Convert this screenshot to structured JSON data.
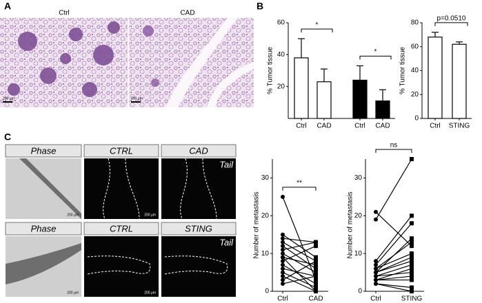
{
  "panel_labels": [
    "A",
    "B",
    "C"
  ],
  "histology": {
    "labels": [
      "Ctrl",
      "CAD"
    ],
    "scale_bars": [
      "200 µm",
      "200 µm"
    ]
  },
  "zebrafish": {
    "rows": [
      {
        "headers": [
          "Phase",
          "CTRL",
          "CAD"
        ],
        "tail": "Tail",
        "scale_bars": [
          "200 µm",
          "200 µm"
        ]
      },
      {
        "headers": [
          "Phase",
          "CTRL",
          "STING"
        ],
        "tail": "Tail",
        "scale_bars": [
          "200 µm",
          "200 µm"
        ]
      }
    ]
  },
  "chart_data": [
    {
      "type": "bar",
      "y_label": "% Tumor tissue",
      "categories": [
        "Ctrl",
        "CAD",
        "Ctrl",
        "CAD"
      ],
      "values": [
        38,
        23,
        24,
        11
      ],
      "errors": [
        12,
        8,
        9,
        7
      ],
      "colors": [
        "#ffffff",
        "#ffffff",
        "#000000",
        "#000000"
      ],
      "ylim": [
        0,
        60
      ],
      "yticks": [
        20,
        40,
        60
      ],
      "annotations": [
        "*",
        "*"
      ]
    },
    {
      "type": "bar",
      "y_label": "% Tumor tissue",
      "categories": [
        "Ctrl",
        "STING"
      ],
      "values": [
        68,
        62
      ],
      "errors": [
        4,
        2
      ],
      "colors": [
        "#ffffff",
        "#ffffff"
      ],
      "ylim": [
        0,
        80
      ],
      "yticks": [
        0,
        20,
        40,
        60,
        80
      ],
      "annotations": [
        "p=0.0510"
      ]
    },
    {
      "type": "paired",
      "y_label": "Number of metastasis",
      "categories": [
        "Ctrl",
        "CAD"
      ],
      "values": [
        [
          25,
          3
        ],
        [
          15,
          9
        ],
        [
          14,
          13
        ],
        [
          13,
          8
        ],
        [
          12,
          6
        ],
        [
          11,
          13
        ],
        [
          10,
          5
        ],
        [
          9,
          7
        ],
        [
          8,
          12
        ],
        [
          7,
          2
        ],
        [
          6,
          4
        ],
        [
          5,
          1
        ],
        [
          4,
          0
        ],
        [
          3,
          8
        ],
        [
          2,
          4
        ],
        [
          9,
          0
        ]
      ],
      "ylim": [
        0,
        35
      ],
      "yticks": [
        0,
        10,
        20,
        30
      ],
      "annotations": [
        "**"
      ]
    },
    {
      "type": "paired",
      "y_label": "Number of metastasis",
      "categories": [
        "Ctrl",
        "STING"
      ],
      "values": [
        [
          21,
          12
        ],
        [
          19,
          35
        ],
        [
          8,
          20
        ],
        [
          7,
          18
        ],
        [
          6,
          13
        ],
        [
          6,
          10
        ],
        [
          5,
          9
        ],
        [
          5,
          8
        ],
        [
          4,
          7
        ],
        [
          4,
          5
        ],
        [
          3,
          4
        ],
        [
          3,
          3
        ],
        [
          2,
          1
        ],
        [
          2,
          0
        ],
        [
          3,
          6
        ],
        [
          5,
          14
        ]
      ],
      "ylim": [
        0,
        35
      ],
      "yticks": [
        0,
        10,
        20,
        30
      ],
      "annotations": [
        "ns"
      ]
    }
  ]
}
